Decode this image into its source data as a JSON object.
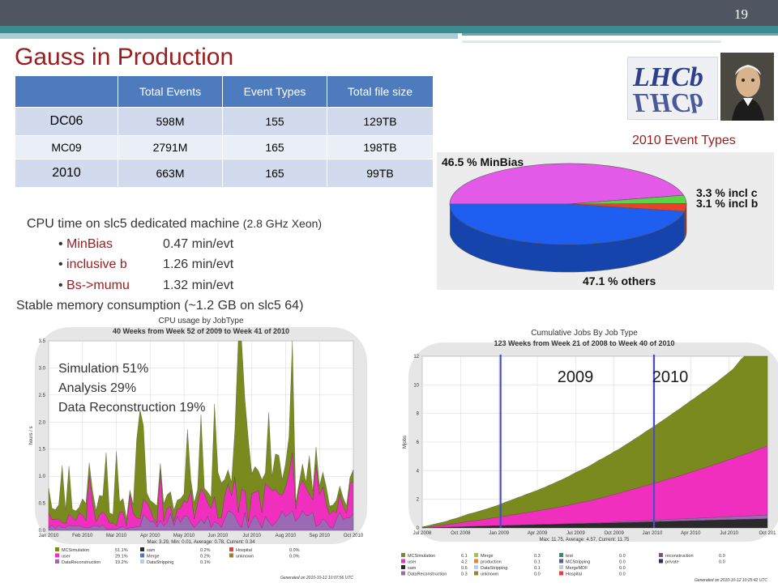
{
  "slide": {
    "page_number": "19",
    "title": "Gauss in Production"
  },
  "table": {
    "headers": [
      "",
      "Total Events",
      "Event Types",
      "Total file size"
    ],
    "rows": [
      [
        "DC06",
        "598M",
        "155",
        "129TB"
      ],
      [
        "MC09",
        "2791M",
        "165",
        "198TB"
      ],
      [
        "2010",
        "663M",
        "165",
        "99TB"
      ]
    ]
  },
  "cpu": {
    "heading": "CPU time on slc5 dedicated machine ",
    "heading_small": "(2.8 GHz Xeon)",
    "items": [
      {
        "name": "MinBias",
        "value": "0.47 min/evt"
      },
      {
        "name": "inclusive b",
        "value": "1.26 min/evt"
      },
      {
        "name": "Bs->mumu",
        "value": "1.32 min/evt"
      }
    ],
    "memory": "Stable memory consumption (~1.2 GB on slc5 64)"
  },
  "logo": {
    "text": "LHCb"
  },
  "pie_caption": "2010 Event Types",
  "charts": {
    "cpu_overlay": [
      "Simulation 51%",
      "Analysis 29%",
      "Data Reconstruction 19%"
    ],
    "jobs_years": [
      "2009",
      "2010"
    ]
  },
  "chart_data": [
    {
      "type": "pie",
      "labels": [
        "46.5 % MinBias",
        "3.3 % incl c",
        "3.1 % incl b",
        "47.1 % others"
      ],
      "values": [
        46.5,
        3.3,
        3.1,
        47.1
      ],
      "colors": [
        "#e45ae8",
        "#5ad24a",
        "#e8402a",
        "#1e5ef0"
      ]
    },
    {
      "type": "area",
      "title": "CPU usage by JobType",
      "subtitle": "40 Weeks from Week 52 of 2009 to Week 41 of 2010",
      "ylabel": "hours / s",
      "ylim": [
        0,
        3.5
      ],
      "yticks": [
        "0.0",
        "0.5",
        "1.0",
        "1.5",
        "2.0",
        "2.5",
        "3.0",
        "3.5"
      ],
      "xticks": [
        "Jan 2010",
        "Feb 2010",
        "Mar 2010",
        "Apr 2010",
        "May 2010",
        "Jun 2010",
        "Jul 2010",
        "Aug 2010",
        "Sep 2010",
        "Oct 2010"
      ],
      "stats": "Max: 3.29, Min: 0.01, Average: 0.78, Current: 0.34",
      "series": [
        {
          "name": "MCSimulation",
          "value": "51.1%",
          "color": "#7a8a1e"
        },
        {
          "name": "user",
          "value": "29.1%",
          "color": "#f02fbe"
        },
        {
          "name": "DataReconstruction",
          "value": "19.2%",
          "color": "#9a6ab4"
        },
        {
          "name": "sam",
          "value": "0.2%",
          "color": "#2a2a2a"
        },
        {
          "name": "Merge",
          "value": "0.2%",
          "color": "#4a7ac8"
        },
        {
          "name": "DataStripping",
          "value": "0.1%",
          "color": "#b0d0f0"
        },
        {
          "name": "Hospital",
          "value": "0.0%",
          "color": "#e04040"
        },
        {
          "name": "unknown",
          "value": "0.0%",
          "color": "#a08020"
        }
      ],
      "footer": "Generated on 2010-10-12 10:07:56 UTC"
    },
    {
      "type": "area",
      "title": "Cumulative Jobs By Job Type",
      "subtitle": "123 Weeks from Week 21 of 2008 to Week 40 of 2010",
      "ylabel": "Mjobs",
      "ylim": [
        0,
        12
      ],
      "yticks": [
        "0",
        "2",
        "4",
        "6",
        "8",
        "10",
        "12"
      ],
      "xticks": [
        "Jul 2008",
        "Oct 2008",
        "Jan 2009",
        "Apr 2009",
        "Jul 2009",
        "Oct 2009",
        "Jan 2010",
        "Apr 2010",
        "Jul 2010",
        "Oct 201"
      ],
      "stats": "Max: 11.75, Average: 4.57, Current: 11.75",
      "series": [
        {
          "name": "MCSimulation",
          "value": "6.1",
          "color": "#7a8a1e"
        },
        {
          "name": "user",
          "value": "4.2",
          "color": "#f02fbe"
        },
        {
          "name": "sam",
          "value": "0.6",
          "color": "#2a2a2a"
        },
        {
          "name": "DataReconstruction",
          "value": "0.3",
          "color": "#9a6ab4"
        },
        {
          "name": "Merge",
          "value": "0.3",
          "color": "#9acd32"
        },
        {
          "name": "production",
          "value": "0.1",
          "color": "#e88a20"
        },
        {
          "name": "DataStripping",
          "value": "0.1",
          "color": "#b0d0f0"
        },
        {
          "name": "unknown",
          "value": "0.0",
          "color": "#a08020"
        },
        {
          "name": "test",
          "value": "0.0",
          "color": "#3a8a6a"
        },
        {
          "name": "MCStripping",
          "value": "0.0",
          "color": "#5a5a9a"
        },
        {
          "name": "MergeMDF",
          "value": "0.0",
          "color": "#c8c8c8"
        },
        {
          "name": "Hospital",
          "value": "0.0",
          "color": "#e04040"
        },
        {
          "name": "reconstruction",
          "value": "0.0",
          "color": "#8a4a8a"
        },
        {
          "name": "private",
          "value": "0.0",
          "color": "#2a2a8a"
        }
      ],
      "footer": "Generated on 2010-10-12 10:25:42 UTC"
    }
  ]
}
